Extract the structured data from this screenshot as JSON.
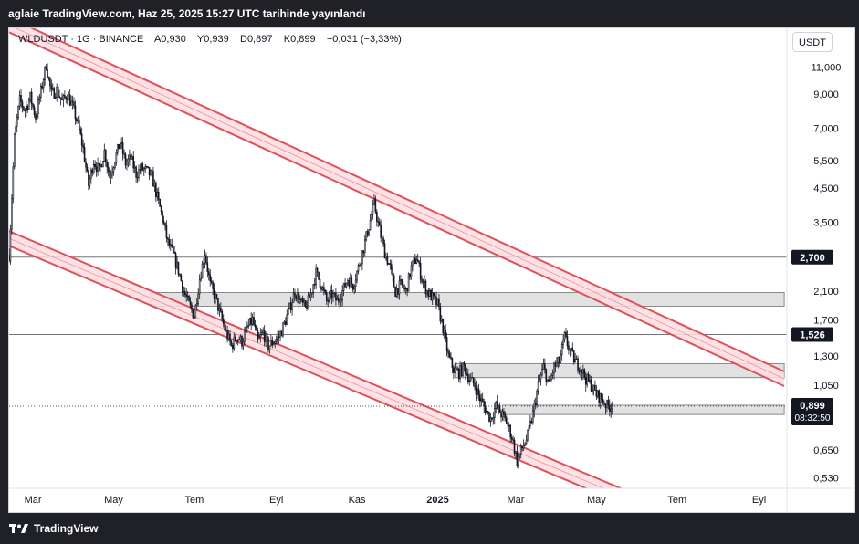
{
  "header": {
    "publish_text": "aglaie TradingView.com, Haz 25, 2025 15:27 UTC tarihinde yayınlandı"
  },
  "symbol": {
    "name": "WLDUSDT · 1G · BINANCE",
    "open": "A0,930",
    "high": "Y0,939",
    "low": "D0,897",
    "close": "K0,899",
    "change": "−0,031 (−3,33%)"
  },
  "currency_button": "USDT",
  "footer": {
    "brand": "TradingView"
  },
  "colors": {
    "candle": "#131722",
    "channel": "#e0505a",
    "channel_fill": "#fbdde0",
    "zone_fill": "#d9d9d9",
    "zone_border": "#8a8a8a",
    "hline": "#777777",
    "label_bg": "#131722"
  },
  "chart_data": {
    "type": "candlestick",
    "y_scale": "log",
    "ylim": [
      0.49,
      13.5
    ],
    "y_ticks": [
      {
        "value": 11.0,
        "label": "11,000"
      },
      {
        "value": 9.0,
        "label": "9,000"
      },
      {
        "value": 7.0,
        "label": "7,000"
      },
      {
        "value": 5.5,
        "label": "5,500"
      },
      {
        "value": 4.5,
        "label": "4,500"
      },
      {
        "value": 3.5,
        "label": "3,500"
      },
      {
        "value": 2.1,
        "label": "2,100"
      },
      {
        "value": 1.7,
        "label": "1,700"
      },
      {
        "value": 1.3,
        "label": "1,300"
      },
      {
        "value": 1.05,
        "label": "1,050"
      },
      {
        "value": 0.65,
        "label": "0,650"
      },
      {
        "value": 0.53,
        "label": "0,530"
      }
    ],
    "x_ticks": [
      {
        "label": "Mar",
        "day": 0,
        "bold": false
      },
      {
        "label": "May",
        "day": 61,
        "bold": false
      },
      {
        "label": "Tem",
        "day": 122,
        "bold": false
      },
      {
        "label": "Eyl",
        "day": 184,
        "bold": false
      },
      {
        "label": "Kas",
        "day": 245,
        "bold": false
      },
      {
        "label": "2025",
        "day": 306,
        "bold": true
      },
      {
        "label": "Mar",
        "day": 365,
        "bold": false
      },
      {
        "label": "May",
        "day": 426,
        "bold": false
      },
      {
        "label": "Tem",
        "day": 487,
        "bold": false
      },
      {
        "label": "Eyl",
        "day": 549,
        "bold": false
      }
    ],
    "x_range_days": [
      -18,
      570
    ],
    "price_path": [
      [
        -18,
        2.75
      ],
      [
        -14,
        6.5
      ],
      [
        -10,
        8.6
      ],
      [
        -6,
        8.0
      ],
      [
        -2,
        8.8
      ],
      [
        2,
        7.6
      ],
      [
        6,
        9.2
      ],
      [
        10,
        11.2
      ],
      [
        14,
        9.0
      ],
      [
        18,
        9.3
      ],
      [
        22,
        8.5
      ],
      [
        26,
        9.0
      ],
      [
        30,
        8.2
      ],
      [
        34,
        7.2
      ],
      [
        38,
        6.0
      ],
      [
        42,
        4.6
      ],
      [
        46,
        5.5
      ],
      [
        50,
        5.1
      ],
      [
        54,
        5.9
      ],
      [
        58,
        4.9
      ],
      [
        62,
        5.6
      ],
      [
        66,
        6.3
      ],
      [
        70,
        5.4
      ],
      [
        74,
        5.6
      ],
      [
        78,
        5.0
      ],
      [
        82,
        5.2
      ],
      [
        86,
        5.1
      ],
      [
        90,
        4.9
      ],
      [
        94,
        4.2
      ],
      [
        98,
        3.6
      ],
      [
        102,
        3.0
      ],
      [
        106,
        2.75
      ],
      [
        110,
        2.45
      ],
      [
        114,
        2.1
      ],
      [
        118,
        1.9
      ],
      [
        122,
        1.75
      ],
      [
        126,
        2.3
      ],
      [
        130,
        2.8
      ],
      [
        134,
        2.2
      ],
      [
        138,
        2.0
      ],
      [
        142,
        1.75
      ],
      [
        146,
        1.55
      ],
      [
        150,
        1.4
      ],
      [
        154,
        1.5
      ],
      [
        158,
        1.45
      ],
      [
        162,
        1.6
      ],
      [
        166,
        1.7
      ],
      [
        170,
        1.45
      ],
      [
        174,
        1.55
      ],
      [
        178,
        1.4
      ],
      [
        182,
        1.45
      ],
      [
        186,
        1.5
      ],
      [
        190,
        1.65
      ],
      [
        194,
        1.85
      ],
      [
        198,
        2.1
      ],
      [
        202,
        1.95
      ],
      [
        206,
        1.85
      ],
      [
        210,
        2.05
      ],
      [
        214,
        2.4
      ],
      [
        218,
        2.2
      ],
      [
        222,
        1.95
      ],
      [
        226,
        2.05
      ],
      [
        230,
        1.95
      ],
      [
        234,
        2.1
      ],
      [
        238,
        2.3
      ],
      [
        242,
        2.2
      ],
      [
        246,
        2.5
      ],
      [
        250,
        2.9
      ],
      [
        254,
        3.4
      ],
      [
        258,
        4.0
      ],
      [
        262,
        3.3
      ],
      [
        266,
        2.8
      ],
      [
        270,
        2.5
      ],
      [
        274,
        2.1
      ],
      [
        278,
        2.2
      ],
      [
        282,
        2.1
      ],
      [
        286,
        2.5
      ],
      [
        290,
        2.7
      ],
      [
        294,
        2.3
      ],
      [
        298,
        2.1
      ],
      [
        302,
        2.0
      ],
      [
        306,
        1.9
      ],
      [
        310,
        1.6
      ],
      [
        314,
        1.3
      ],
      [
        318,
        1.18
      ],
      [
        322,
        1.15
      ],
      [
        326,
        1.2
      ],
      [
        330,
        1.1
      ],
      [
        334,
        1.05
      ],
      [
        338,
        0.95
      ],
      [
        342,
        0.88
      ],
      [
        346,
        0.82
      ],
      [
        350,
        0.9
      ],
      [
        354,
        0.85
      ],
      [
        358,
        0.8
      ],
      [
        362,
        0.72
      ],
      [
        366,
        0.6
      ],
      [
        370,
        0.66
      ],
      [
        374,
        0.72
      ],
      [
        378,
        0.85
      ],
      [
        382,
        1.05
      ],
      [
        386,
        1.2
      ],
      [
        390,
        1.05
      ],
      [
        394,
        1.2
      ],
      [
        398,
        1.25
      ],
      [
        402,
        1.5
      ],
      [
        406,
        1.35
      ],
      [
        410,
        1.25
      ],
      [
        414,
        1.2
      ],
      [
        418,
        1.1
      ],
      [
        422,
        1.05
      ],
      [
        426,
        0.98
      ],
      [
        430,
        0.95
      ],
      [
        434,
        0.9
      ],
      [
        438,
        0.899
      ]
    ],
    "channels": [
      {
        "name": "upper",
        "start": [
          -18,
          15.0
        ],
        "end": [
          568,
          1.1
        ]
      },
      {
        "name": "lower",
        "start": [
          -18,
          3.1
        ],
        "end": [
          452,
          0.45
        ]
      }
    ],
    "zones": [
      {
        "from_day": 89,
        "to_day": 568,
        "low": 1.88,
        "high": 2.08
      },
      {
        "from_day": 319,
        "to_day": 568,
        "low": 1.11,
        "high": 1.23
      },
      {
        "from_day": 355,
        "to_day": 568,
        "low": 0.845,
        "high": 0.905
      }
    ],
    "hlines": [
      {
        "value": 2.7,
        "label": "2,700"
      },
      {
        "value": 1.526,
        "label": "1,526"
      }
    ],
    "last_price": {
      "value": 0.899,
      "label": "0,899",
      "countdown": "08:32:50"
    }
  }
}
